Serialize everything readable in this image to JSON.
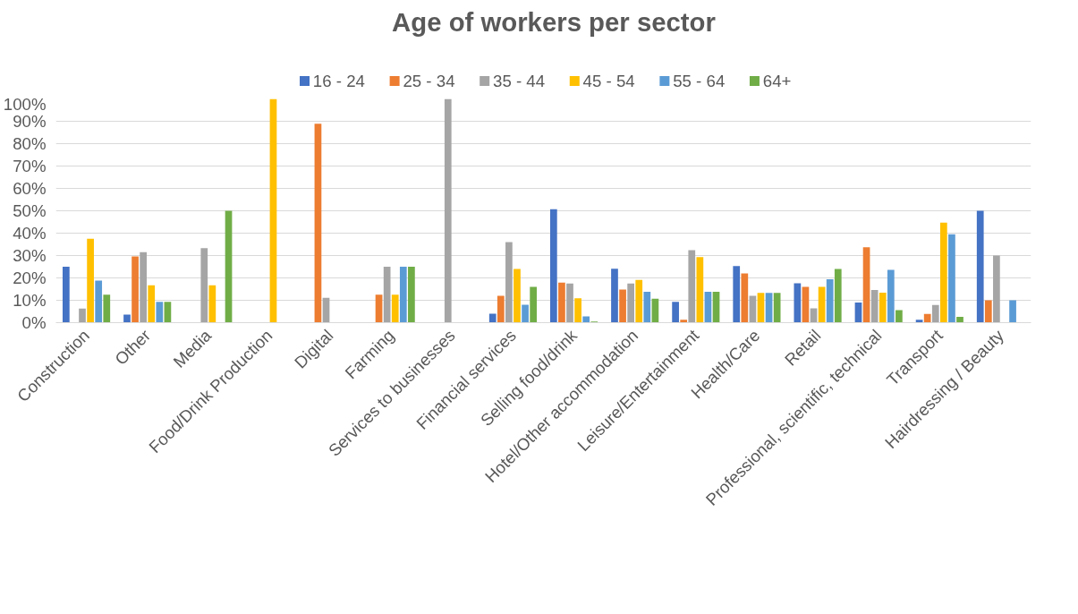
{
  "chart_data": {
    "type": "bar",
    "title": "Age of workers per sector",
    "categories": [
      "Construction",
      "Other",
      "Media",
      "Food/Drink Production",
      "Digital",
      "Farming",
      "Services to businesses",
      "Financial services",
      "Selling food/drink",
      "Hotel/Other accommodation",
      "Leisure/Entertainment",
      "Health/Care",
      "Retail",
      "Professional, scientific, technical",
      "Transport",
      "Hairdressing / Beauty"
    ],
    "series": [
      {
        "name": "16 - 24",
        "color": "#4472c4",
        "values": [
          25,
          3.6,
          0,
          0,
          0,
          0,
          0,
          4,
          50.7,
          24.1,
          9.3,
          25.3,
          17.6,
          9,
          1.3,
          50
        ]
      },
      {
        "name": "25 - 34",
        "color": "#ed7d31",
        "values": [
          0,
          29.6,
          0,
          0,
          88.9,
          12.5,
          0,
          12,
          17.9,
          14.8,
          1.3,
          22,
          16,
          33.7,
          3.9,
          10
        ]
      },
      {
        "name": "35 - 44",
        "color": "#a5a5a5",
        "values": [
          6.3,
          31.5,
          33.3,
          0,
          11.1,
          25,
          100,
          36,
          17.5,
          17.5,
          32.4,
          12,
          6.4,
          14.6,
          7.9,
          30
        ]
      },
      {
        "name": "45 - 54",
        "color": "#ffc000",
        "values": [
          37.5,
          16.7,
          16.7,
          100,
          0,
          12.5,
          0,
          24,
          10.9,
          19.1,
          29.3,
          13.3,
          16,
          13.4,
          44.7,
          0
        ]
      },
      {
        "name": "55 - 64",
        "color": "#5b9bd5",
        "values": [
          18.8,
          9.3,
          0,
          0,
          0,
          25,
          0,
          8,
          2.8,
          13.8,
          13.8,
          13.3,
          19.4,
          23.6,
          39.5,
          10
        ]
      },
      {
        "name": "64+",
        "color": "#70ad47",
        "values": [
          12.5,
          9.3,
          50,
          0,
          0,
          25,
          0,
          16,
          0.5,
          10.7,
          13.8,
          13.3,
          24,
          5.6,
          2.6,
          0
        ]
      }
    ],
    "ylim": [
      0,
      100
    ],
    "yticks": [
      {
        "value": 0,
        "label": "0%"
      },
      {
        "value": 10,
        "label": "10%"
      },
      {
        "value": 20,
        "label": "20%"
      },
      {
        "value": 30,
        "label": "30%"
      },
      {
        "value": 40,
        "label": "40%"
      },
      {
        "value": 50,
        "label": "50%"
      },
      {
        "value": 60,
        "label": "60%"
      },
      {
        "value": 70,
        "label": "70%"
      },
      {
        "value": 80,
        "label": "80%"
      },
      {
        "value": 90,
        "label": "90%"
      },
      {
        "value": 100,
        "label": "100%"
      }
    ],
    "grid": "y",
    "legend": "top"
  }
}
